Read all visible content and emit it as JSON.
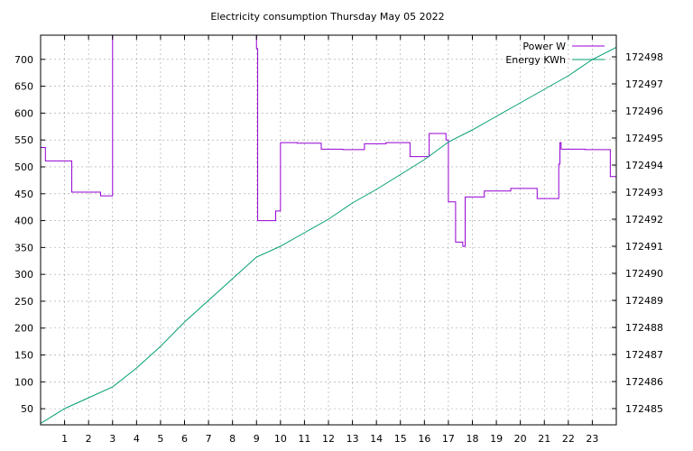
{
  "chart_data": {
    "type": "line",
    "title": "Electricity consumption Thursday May 05 2022",
    "xlim": [
      0,
      24
    ],
    "x_ticks": [
      1,
      2,
      3,
      4,
      5,
      6,
      7,
      8,
      9,
      10,
      11,
      12,
      13,
      14,
      15,
      16,
      17,
      18,
      19,
      20,
      21,
      22,
      23
    ],
    "y_left_lim": [
      20,
      745
    ],
    "y_left_ticks": [
      50,
      100,
      150,
      200,
      250,
      300,
      350,
      400,
      450,
      500,
      550,
      600,
      650,
      700
    ],
    "y_right_lim": [
      172484.4,
      172498.8
    ],
    "y_right_ticks": [
      172485,
      172486,
      172487,
      172488,
      172489,
      172490,
      172491,
      172492,
      172493,
      172494,
      172495,
      172496,
      172497,
      172498
    ],
    "grid": true,
    "legend_position": "top-right",
    "colors": {
      "power": "#9400d3",
      "energy": "#009e73"
    },
    "series": [
      {
        "name": "Power W",
        "axis": "left",
        "step": true,
        "points": [
          [
            0.0,
            536
          ],
          [
            0.2,
            511
          ],
          [
            1.3,
            453
          ],
          [
            2.5,
            446
          ],
          [
            3.0,
            745
          ],
          [
            8.95,
            745
          ],
          [
            9.0,
            720
          ],
          [
            9.05,
            400
          ],
          [
            9.8,
            418
          ],
          [
            10.0,
            545
          ],
          [
            10.7,
            544
          ],
          [
            11.7,
            533
          ],
          [
            12.6,
            532
          ],
          [
            13.5,
            543
          ],
          [
            14.4,
            545
          ],
          [
            15.4,
            519
          ],
          [
            16.2,
            562
          ],
          [
            16.9,
            550
          ],
          [
            17.0,
            435
          ],
          [
            17.3,
            360
          ],
          [
            17.6,
            352
          ],
          [
            17.7,
            444
          ],
          [
            18.5,
            455
          ],
          [
            19.6,
            460
          ],
          [
            20.7,
            441
          ],
          [
            21.6,
            505
          ],
          [
            21.65,
            545
          ],
          [
            21.7,
            533
          ],
          [
            22.7,
            532
          ],
          [
            23.75,
            482
          ],
          [
            24.0,
            482
          ]
        ]
      },
      {
        "name": "Energy KWh",
        "axis": "right",
        "step": false,
        "points": [
          [
            0,
            172484.45
          ],
          [
            1,
            172485.0
          ],
          [
            2,
            172485.4
          ],
          [
            3,
            172485.8
          ],
          [
            4,
            172486.5
          ],
          [
            5,
            172487.3
          ],
          [
            6,
            172488.2
          ],
          [
            7,
            172489.0
          ],
          [
            8,
            172489.8
          ],
          [
            9,
            172490.6
          ],
          [
            10,
            172491.0
          ],
          [
            11,
            172491.5
          ],
          [
            12,
            172492.0
          ],
          [
            13,
            172492.6
          ],
          [
            14,
            172493.1
          ],
          [
            15,
            172493.65
          ],
          [
            16,
            172494.2
          ],
          [
            17,
            172494.85
          ],
          [
            18,
            172495.3
          ],
          [
            19,
            172495.8
          ],
          [
            20,
            172496.3
          ],
          [
            21,
            172496.8
          ],
          [
            22,
            172497.3
          ],
          [
            23,
            172497.9
          ],
          [
            24,
            172498.35
          ]
        ]
      }
    ]
  }
}
